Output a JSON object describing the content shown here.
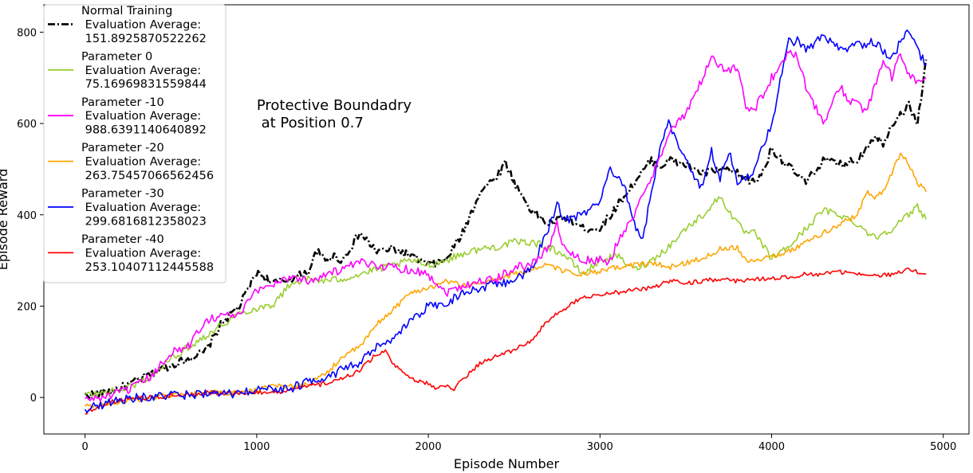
{
  "chart_data": {
    "type": "line",
    "xlabel": "Episode Number",
    "ylabel": "Episode Reward",
    "xlim": [
      -240,
      5150
    ],
    "ylim": [
      -80,
      860
    ],
    "x_ticks": [
      0,
      1000,
      2000,
      3000,
      4000,
      5000
    ],
    "y_ticks": [
      0,
      200,
      400,
      600,
      800
    ],
    "x_tick_labels": [
      "0",
      "1000",
      "2000",
      "3000",
      "4000",
      "5000"
    ],
    "y_tick_labels": [
      "0",
      "200",
      "400",
      "600",
      "800"
    ],
    "annotation": {
      "line1": "Protective Boundadry",
      "line2": " at Position 0.7",
      "x": 1000,
      "y": 630
    },
    "grid": false,
    "legend_position": "top-left",
    "series": [
      {
        "name": "Normal Training",
        "legend": [
          "Normal Training",
          " Evaluation Average:",
          " 151.8925870522262"
        ],
        "color": "#000000",
        "style": "dashdot",
        "x": [
          0,
          100,
          200,
          300,
          400,
          500,
          600,
          700,
          800,
          900,
          1000,
          1100,
          1200,
          1300,
          1350,
          1400,
          1450,
          1500,
          1600,
          1700,
          1800,
          1900,
          2000,
          2100,
          2200,
          2300,
          2400,
          2450,
          2500,
          2600,
          2650,
          2700,
          2800,
          2900,
          3000,
          3050,
          3100,
          3200,
          3300,
          3350,
          3400,
          3500,
          3600,
          3700,
          3800,
          3900,
          3950,
          4000,
          4100,
          4200,
          4300,
          4400,
          4500,
          4600,
          4650,
          4700,
          4750,
          4800,
          4850,
          4900
        ],
        "y": [
          5,
          10,
          20,
          35,
          55,
          70,
          85,
          100,
          165,
          200,
          275,
          250,
          260,
          275,
          320,
          300,
          310,
          300,
          360,
          320,
          325,
          310,
          290,
          300,
          360,
          450,
          485,
          515,
          470,
          410,
          395,
          380,
          395,
          370,
          370,
          395,
          420,
          470,
          520,
          505,
          520,
          510,
          490,
          500,
          490,
          470,
          495,
          545,
          505,
          470,
          520,
          510,
          520,
          575,
          555,
          600,
          620,
          640,
          600,
          740
        ],
        "noise": 9
      },
      {
        "name": "Parameter 0",
        "legend": [
          "Parameter 0",
          " Evaluation Average:",
          " 75.16969831559844"
        ],
        "color": "#9acd32",
        "style": "solid",
        "x": [
          0,
          100,
          200,
          300,
          400,
          500,
          600,
          700,
          800,
          900,
          1000,
          1100,
          1200,
          1300,
          1400,
          1500,
          1600,
          1700,
          1800,
          1900,
          2000,
          2100,
          2200,
          2300,
          2400,
          2500,
          2600,
          2700,
          2800,
          2900,
          3000,
          3100,
          3200,
          3300,
          3400,
          3500,
          3600,
          3700,
          3800,
          3850,
          3900,
          4000,
          4100,
          4200,
          4300,
          4400,
          4500,
          4600,
          4700,
          4800,
          4850,
          4900
        ],
        "y": [
          5,
          10,
          15,
          30,
          50,
          85,
          110,
          135,
          160,
          185,
          195,
          205,
          250,
          260,
          255,
          260,
          270,
          280,
          290,
          300,
          290,
          300,
          315,
          325,
          330,
          340,
          340,
          330,
          310,
          270,
          300,
          310,
          280,
          300,
          330,
          370,
          400,
          440,
          380,
          360,
          360,
          305,
          330,
          370,
          410,
          400,
          380,
          350,
          370,
          400,
          420,
          390
        ],
        "noise": 8
      },
      {
        "name": "Parameter -10",
        "legend": [
          "Parameter -10",
          " Evaluation Average:",
          " 988.6391140640892"
        ],
        "color": "#ff00ff",
        "style": "solid",
        "x": [
          0,
          100,
          200,
          300,
          400,
          500,
          600,
          700,
          800,
          900,
          1000,
          1100,
          1200,
          1300,
          1400,
          1500,
          1600,
          1700,
          1800,
          1900,
          2000,
          2100,
          2200,
          2300,
          2400,
          2500,
          2600,
          2700,
          2750,
          2800,
          2900,
          3000,
          3050,
          3100,
          3200,
          3300,
          3400,
          3500,
          3600,
          3650,
          3700,
          3800,
          3850,
          3900,
          4000,
          4050,
          4100,
          4150,
          4200,
          4250,
          4300,
          4350,
          4400,
          4450,
          4500,
          4550,
          4600,
          4650,
          4700,
          4750,
          4800,
          4850,
          4900
        ],
        "y": [
          -5,
          0,
          10,
          25,
          50,
          100,
          110,
          170,
          180,
          180,
          235,
          250,
          265,
          255,
          270,
          280,
          295,
          290,
          285,
          280,
          270,
          230,
          245,
          255,
          260,
          285,
          290,
          330,
          380,
          320,
          300,
          300,
          290,
          340,
          400,
          480,
          580,
          620,
          700,
          750,
          720,
          720,
          640,
          630,
          700,
          720,
          760,
          750,
          680,
          640,
          600,
          640,
          680,
          650,
          650,
          620,
          680,
          740,
          700,
          750,
          710,
          690,
          700
        ],
        "noise": 10
      },
      {
        "name": "Parameter -20",
        "legend": [
          "Parameter -20",
          " Evaluation Average:",
          " 263.75457066562456"
        ],
        "color": "#ffa500",
        "style": "solid",
        "x": [
          0,
          100,
          200,
          300,
          400,
          500,
          600,
          700,
          800,
          900,
          1000,
          1100,
          1200,
          1300,
          1400,
          1500,
          1600,
          1700,
          1800,
          1900,
          2000,
          2100,
          2200,
          2300,
          2400,
          2500,
          2600,
          2700,
          2800,
          2900,
          3000,
          3100,
          3200,
          3300,
          3400,
          3500,
          3600,
          3700,
          3800,
          3850,
          3900,
          4000,
          4100,
          4200,
          4300,
          4400,
          4500,
          4550,
          4600,
          4650,
          4700,
          4750,
          4800,
          4850,
          4900
        ],
        "y": [
          -20,
          -15,
          -10,
          -5,
          0,
          5,
          5,
          10,
          10,
          10,
          15,
          25,
          25,
          30,
          50,
          90,
          110,
          160,
          195,
          230,
          240,
          255,
          245,
          250,
          260,
          270,
          280,
          290,
          275,
          270,
          275,
          285,
          290,
          295,
          285,
          295,
          305,
          325,
          330,
          300,
          300,
          310,
          320,
          340,
          360,
          380,
          400,
          450,
          440,
          450,
          490,
          535,
          510,
          470,
          450
        ],
        "noise": 6
      },
      {
        "name": "Parameter -30",
        "legend": [
          "Parameter -30",
          " Evaluation Average:",
          " 299.6816812358023"
        ],
        "color": "#0000ff",
        "style": "solid",
        "x": [
          0,
          100,
          200,
          300,
          400,
          500,
          600,
          700,
          800,
          900,
          1000,
          1100,
          1200,
          1300,
          1400,
          1500,
          1600,
          1700,
          1800,
          1900,
          2000,
          2100,
          2200,
          2300,
          2400,
          2500,
          2600,
          2700,
          2750,
          2800,
          2900,
          3000,
          3050,
          3100,
          3150,
          3200,
          3250,
          3300,
          3350,
          3400,
          3500,
          3550,
          3600,
          3650,
          3700,
          3750,
          3800,
          3850,
          3900,
          4000,
          4100,
          4150,
          4200,
          4300,
          4400,
          4500,
          4600,
          4700,
          4750,
          4800,
          4850,
          4900
        ],
        "y": [
          -25,
          -15,
          -5,
          0,
          0,
          5,
          5,
          10,
          5,
          10,
          15,
          20,
          20,
          35,
          45,
          60,
          75,
          110,
          125,
          170,
          200,
          205,
          230,
          240,
          250,
          255,
          280,
          370,
          420,
          390,
          400,
          430,
          500,
          480,
          450,
          380,
          350,
          450,
          550,
          600,
          520,
          480,
          460,
          540,
          480,
          540,
          470,
          480,
          500,
          600,
          780,
          780,
          760,
          790,
          760,
          770,
          780,
          740,
          780,
          800,
          760,
          730
        ],
        "noise": 10
      },
      {
        "name": "Parameter -40",
        "legend": [
          "Parameter -40",
          " Evaluation Average:",
          " 253.10407112445588"
        ],
        "color": "#ff0000",
        "style": "solid",
        "x": [
          0,
          100,
          200,
          300,
          400,
          500,
          600,
          700,
          800,
          900,
          1000,
          1100,
          1200,
          1300,
          1400,
          1500,
          1600,
          1700,
          1750,
          1800,
          1900,
          2000,
          2050,
          2100,
          2150,
          2200,
          2300,
          2400,
          2500,
          2600,
          2700,
          2800,
          2900,
          3000,
          3100,
          3200,
          3300,
          3400,
          3500,
          3600,
          3700,
          3800,
          3900,
          4000,
          4100,
          4200,
          4300,
          4400,
          4500,
          4600,
          4700,
          4800,
          4900
        ],
        "y": [
          -35,
          -15,
          -5,
          0,
          0,
          5,
          5,
          10,
          10,
          10,
          10,
          10,
          15,
          25,
          30,
          40,
          60,
          95,
          100,
          70,
          40,
          30,
          20,
          25,
          20,
          40,
          75,
          90,
          105,
          125,
          170,
          195,
          220,
          225,
          230,
          235,
          240,
          255,
          250,
          255,
          260,
          255,
          260,
          260,
          265,
          270,
          270,
          275,
          270,
          265,
          270,
          280,
          270
        ],
        "noise": 5
      }
    ]
  }
}
